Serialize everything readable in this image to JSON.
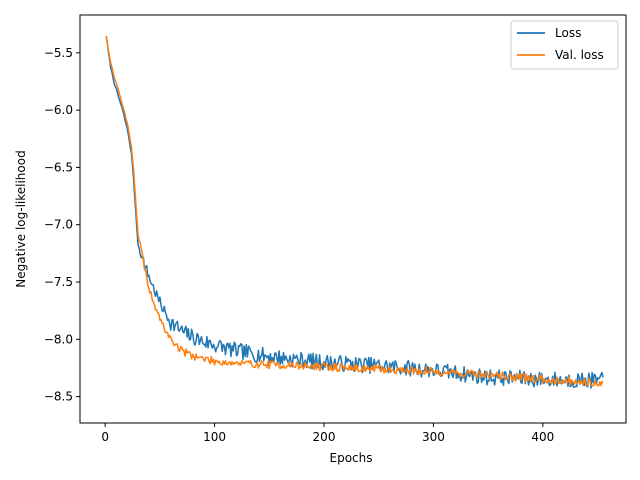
{
  "chart_data": {
    "type": "line",
    "title": "",
    "xlabel": "Epochs",
    "ylabel": "Negative log-likelihood",
    "xlim": [
      -23,
      476
    ],
    "ylim": [
      -8.73,
      -5.17
    ],
    "xticks": [
      0,
      100,
      200,
      300,
      400
    ],
    "yticks": [
      -5.5,
      -6.0,
      -6.5,
      -7.0,
      -7.5,
      -8.0,
      -8.5
    ],
    "xtick_labels": [
      "0",
      "100",
      "200",
      "300",
      "400"
    ],
    "ytick_labels": [
      "−5.5",
      "−6.0",
      "−6.5",
      "−7.0",
      "−7.5",
      "−8.0",
      "−8.5"
    ],
    "grid": false,
    "legend_position": "top-right",
    "series": [
      {
        "name": "Loss",
        "color": "#1f77b4",
        "anchors": [
          [
            1,
            -5.35
          ],
          [
            3,
            -5.5
          ],
          [
            5,
            -5.62
          ],
          [
            8,
            -5.75
          ],
          [
            12,
            -5.88
          ],
          [
            15,
            -5.97
          ],
          [
            18,
            -6.08
          ],
          [
            21,
            -6.2
          ],
          [
            24,
            -6.38
          ],
          [
            26,
            -6.6
          ],
          [
            28,
            -6.9
          ],
          [
            30,
            -7.17
          ],
          [
            33,
            -7.25
          ],
          [
            36,
            -7.35
          ],
          [
            40,
            -7.45
          ],
          [
            45,
            -7.57
          ],
          [
            50,
            -7.68
          ],
          [
            55,
            -7.77
          ],
          [
            60,
            -7.85
          ],
          [
            70,
            -7.93
          ],
          [
            80,
            -7.98
          ],
          [
            90,
            -8.02
          ],
          [
            100,
            -8.05
          ],
          [
            120,
            -8.1
          ],
          [
            150,
            -8.15
          ],
          [
            200,
            -8.2
          ],
          [
            250,
            -8.23
          ],
          [
            300,
            -8.27
          ],
          [
            350,
            -8.33
          ],
          [
            400,
            -8.35
          ],
          [
            455,
            -8.36
          ]
        ],
        "noise": 0.07,
        "seed": 7
      },
      {
        "name": "Val. loss",
        "color": "#ff7f0e",
        "anchors": [
          [
            1,
            -5.35
          ],
          [
            3,
            -5.48
          ],
          [
            5,
            -5.58
          ],
          [
            8,
            -5.7
          ],
          [
            12,
            -5.82
          ],
          [
            15,
            -5.93
          ],
          [
            18,
            -6.03
          ],
          [
            21,
            -6.15
          ],
          [
            24,
            -6.32
          ],
          [
            26,
            -6.52
          ],
          [
            28,
            -6.8
          ],
          [
            30,
            -7.1
          ],
          [
            33,
            -7.22
          ],
          [
            36,
            -7.38
          ],
          [
            40,
            -7.55
          ],
          [
            45,
            -7.7
          ],
          [
            50,
            -7.82
          ],
          [
            55,
            -7.92
          ],
          [
            60,
            -8.0
          ],
          [
            70,
            -8.1
          ],
          [
            80,
            -8.14
          ],
          [
            90,
            -8.17
          ],
          [
            100,
            -8.19
          ],
          [
            120,
            -8.21
          ],
          [
            150,
            -8.22
          ],
          [
            200,
            -8.24
          ],
          [
            250,
            -8.26
          ],
          [
            300,
            -8.28
          ],
          [
            350,
            -8.31
          ],
          [
            400,
            -8.35
          ],
          [
            455,
            -8.38
          ]
        ],
        "noise": 0.035,
        "seed": 19
      }
    ]
  }
}
